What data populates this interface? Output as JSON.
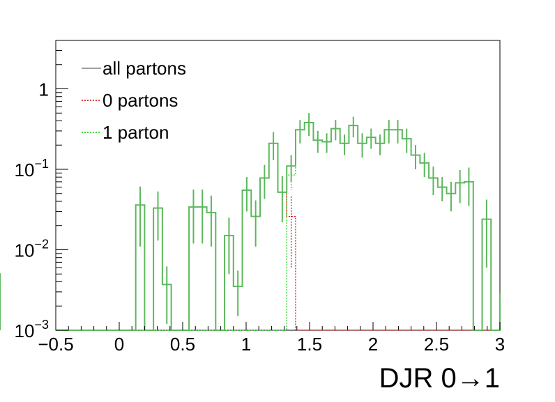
{
  "chart_data": {
    "type": "line",
    "subtype": "step-histogram-with-errorbars",
    "xlabel": "DJR 0→1",
    "xlim": [
      -0.5,
      3.0
    ],
    "ylim": [
      0.001,
      4.0
    ],
    "yscale": "log",
    "grid": false,
    "legend_position": "top-left",
    "x_ticks": [
      {
        "value": -0.5,
        "label": "−0.5"
      },
      {
        "value": 0,
        "label": "0"
      },
      {
        "value": 0.5,
        "label": "0.5"
      },
      {
        "value": 1,
        "label": "1"
      },
      {
        "value": 1.5,
        "label": "1.5"
      },
      {
        "value": 2,
        "label": "2"
      },
      {
        "value": 2.5,
        "label": "2.5"
      },
      {
        "value": 3,
        "label": "3"
      }
    ],
    "y_ticks": [
      {
        "value": 1,
        "base": "1",
        "exp": ""
      },
      {
        "value": 0.1,
        "base": "10",
        "exp": "−1"
      },
      {
        "value": 0.01,
        "base": "10",
        "exp": "−2"
      },
      {
        "value": 0.001,
        "base": "10",
        "exp": "−3"
      }
    ],
    "bin_edges": [
      -0.5,
      -0.43,
      -0.36,
      -0.29,
      -0.22,
      -0.15,
      -0.08,
      -0.01,
      0.06,
      0.13,
      0.2,
      0.27,
      0.34,
      0.41,
      0.48,
      0.55,
      0.62,
      0.69,
      0.76,
      0.83,
      0.9,
      0.97,
      1.04,
      1.11,
      1.18,
      1.25,
      1.32,
      1.39,
      1.46,
      1.53,
      1.6,
      1.67,
      1.74,
      1.81,
      1.88,
      1.95,
      2.02,
      2.09,
      2.16,
      2.23,
      2.3,
      2.37,
      2.44,
      2.51,
      2.58,
      2.65,
      2.72,
      2.79,
      2.86,
      2.93,
      3.0
    ],
    "series": [
      {
        "name": "all partons",
        "color": "#808080",
        "style": "solid",
        "values": [
          0,
          0,
          0,
          0,
          0,
          0,
          0,
          0,
          0,
          0.036,
          0,
          0.033,
          0.0037,
          0,
          0,
          0.034,
          0.034,
          0.029,
          0,
          0.015,
          0.0035,
          0.055,
          0.026,
          0.078,
          0.21,
          0.052,
          0.11,
          0.31,
          0.38,
          0.23,
          0.22,
          0.32,
          0.21,
          0.35,
          0.21,
          0.25,
          0.21,
          0.31,
          0.31,
          0.24,
          0.15,
          0.12,
          0.078,
          0.06,
          0.05,
          0.068,
          0.07,
          0,
          0.024,
          0,
          0.0029
        ],
        "errors": [
          0,
          0,
          0,
          0,
          0,
          0,
          0,
          0,
          0,
          0.025,
          0,
          0.02,
          0.0025,
          0,
          0,
          0.022,
          0.022,
          0.018,
          0,
          0.01,
          0.002,
          0.025,
          0.015,
          0.035,
          0.08,
          0.03,
          0.04,
          0.1,
          0.12,
          0.07,
          0.06,
          0.09,
          0.06,
          0.1,
          0.07,
          0.07,
          0.06,
          0.1,
          0.1,
          0.08,
          0.05,
          0.04,
          0.03,
          0.02,
          0.02,
          0.03,
          0.035,
          0,
          0.018,
          0,
          0.0022
        ]
      },
      {
        "name": "0 partons",
        "color": "#cc0000",
        "style": "dotted",
        "values": [
          0,
          0,
          0,
          0,
          0,
          0,
          0,
          0,
          0,
          0.036,
          0,
          0.033,
          0.0037,
          0,
          0,
          0.034,
          0.034,
          0.029,
          0,
          0.015,
          0.0035,
          0.055,
          0.026,
          0.078,
          0.21,
          0.052,
          0.026,
          0,
          0,
          0,
          0,
          0,
          0,
          0,
          0,
          0,
          0,
          0,
          0,
          0,
          0,
          0,
          0,
          0,
          0,
          0,
          0,
          0,
          0,
          0,
          0
        ],
        "errors": [
          0,
          0,
          0,
          0,
          0,
          0,
          0,
          0,
          0,
          0.025,
          0,
          0.02,
          0.0025,
          0,
          0,
          0.022,
          0.022,
          0.018,
          0,
          0.01,
          0.002,
          0.025,
          0.015,
          0.035,
          0.08,
          0.03,
          0.02,
          0,
          0,
          0,
          0,
          0,
          0,
          0,
          0,
          0,
          0,
          0,
          0,
          0,
          0,
          0,
          0,
          0,
          0,
          0,
          0,
          0,
          0,
          0,
          0
        ]
      },
      {
        "name": "1 parton",
        "color": "#00cc00",
        "style": "dotted",
        "values": [
          0,
          0,
          0,
          0,
          0,
          0,
          0,
          0,
          0,
          0,
          0,
          0,
          0,
          0,
          0,
          0,
          0,
          0,
          0,
          0,
          0,
          0,
          0,
          0,
          0,
          0,
          0.085,
          0.31,
          0.38,
          0.23,
          0.22,
          0.32,
          0.21,
          0.35,
          0.21,
          0.25,
          0.21,
          0.31,
          0.31,
          0.24,
          0.15,
          0.12,
          0.078,
          0.06,
          0.05,
          0.068,
          0.07,
          0,
          0.024,
          0,
          0.0029
        ],
        "errors": [
          0,
          0,
          0,
          0,
          0,
          0,
          0,
          0,
          0,
          0,
          0,
          0,
          0,
          0,
          0,
          0,
          0,
          0,
          0,
          0,
          0,
          0,
          0,
          0,
          0,
          0,
          0.03,
          0.1,
          0.12,
          0.07,
          0.06,
          0.09,
          0.06,
          0.1,
          0.07,
          0.07,
          0.06,
          0.1,
          0.1,
          0.08,
          0.05,
          0.04,
          0.03,
          0.02,
          0.02,
          0.03,
          0.035,
          0,
          0.018,
          0,
          0.0022
        ]
      }
    ]
  }
}
